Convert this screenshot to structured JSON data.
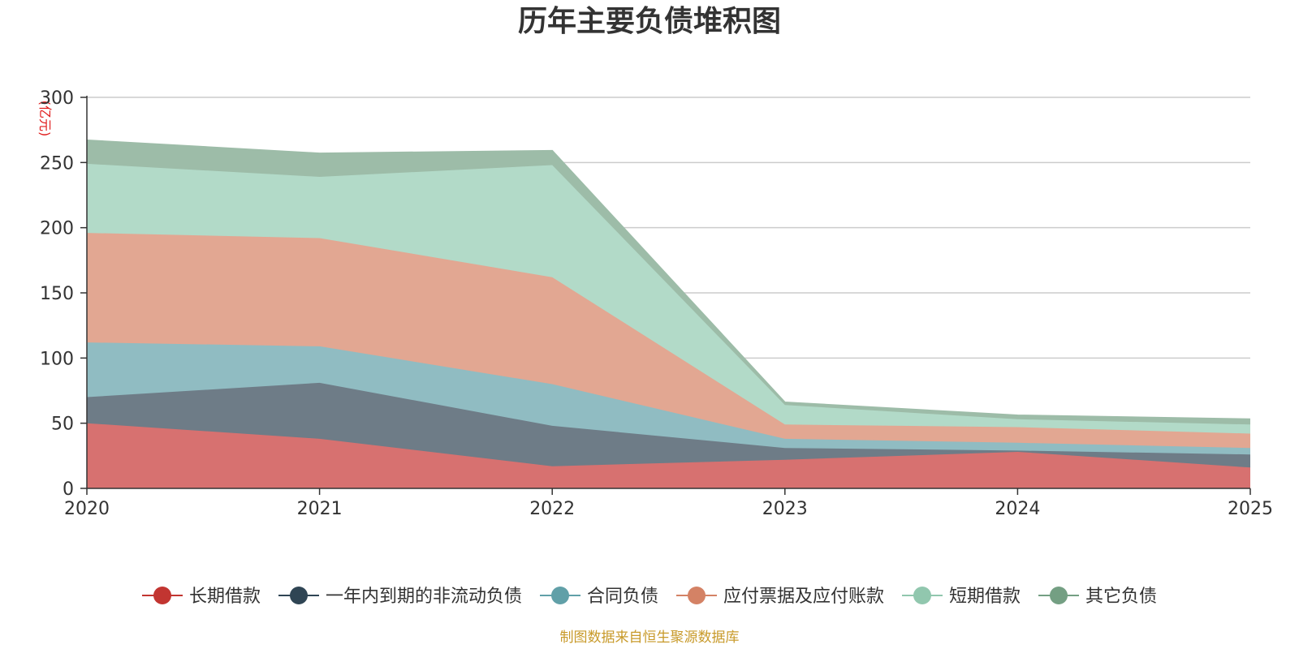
{
  "chart_data": {
    "type": "area",
    "stacked": true,
    "title": "历年主要负债堆积图",
    "ylabel": "(亿元)",
    "xlabel": "",
    "ylim": [
      0,
      300
    ],
    "yticks": [
      0,
      50,
      100,
      150,
      200,
      250,
      300
    ],
    "categories": [
      "2020",
      "2021",
      "2022",
      "2023",
      "2024",
      "2025"
    ],
    "grid": true,
    "legend_position": "bottom",
    "series": [
      {
        "name": "长期借款",
        "color": "#c23531",
        "area_color": "#d77170",
        "values": [
          50,
          38,
          17,
          22,
          28,
          16
        ]
      },
      {
        "name": "一年内到期的非流动负债",
        "color": "#2f4554",
        "area_color": "#6e7c87",
        "values": [
          20,
          43,
          31,
          9,
          1,
          10
        ]
      },
      {
        "name": "合同负债",
        "color": "#61a0a8",
        "area_color": "#90bcc2",
        "values": [
          42,
          28,
          32,
          7,
          6,
          5
        ]
      },
      {
        "name": "应付票据及应付账款",
        "color": "#d48265",
        "area_color": "#e2a792",
        "values": [
          84,
          83,
          82,
          11,
          12,
          11
        ]
      },
      {
        "name": "短期借款",
        "color": "#91c7ae",
        "area_color": "#b2dac8",
        "values": [
          53,
          47,
          86,
          15,
          6,
          7
        ]
      },
      {
        "name": "其它负债",
        "color": "#749f83",
        "area_color": "#9dbca8",
        "values": [
          18,
          18,
          11,
          2,
          3,
          4
        ]
      }
    ]
  },
  "footer": {
    "source": "制图数据来自恒生聚源数据库"
  }
}
